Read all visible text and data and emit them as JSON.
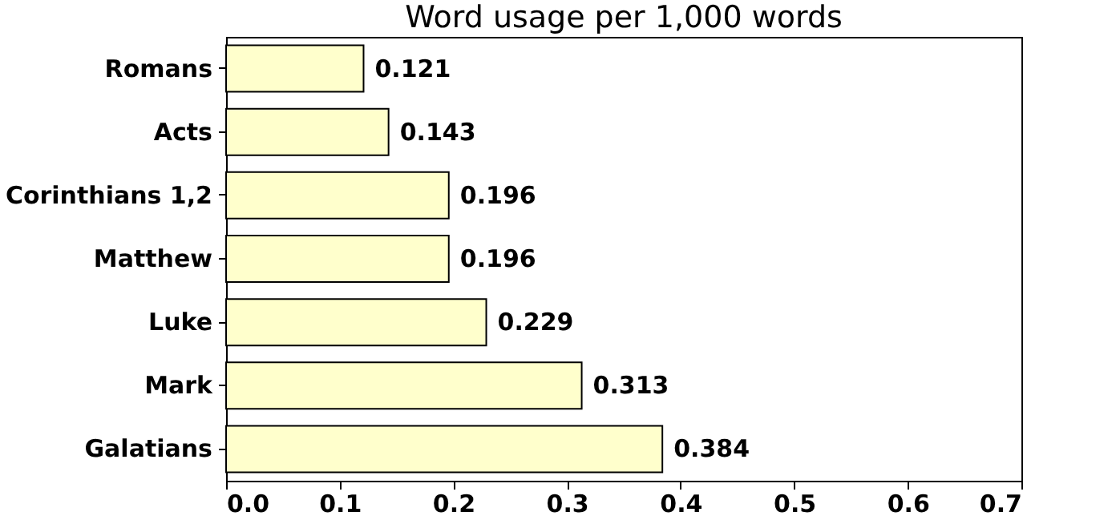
{
  "chart_data": {
    "type": "bar",
    "orientation": "horizontal",
    "title": "Word usage per 1,000 words",
    "categories": [
      "Romans",
      "Acts",
      "Corinthians 1,2",
      "Matthew",
      "Luke",
      "Mark",
      "Galatians"
    ],
    "values": [
      0.121,
      0.143,
      0.196,
      0.196,
      0.229,
      0.313,
      0.384
    ],
    "color": "#ffffcc",
    "data_labels": true,
    "grid": false,
    "xlim": [
      0,
      0.7
    ],
    "xticks": [
      {
        "value": 0,
        "label": "0.0"
      },
      {
        "value": 0.1,
        "label": "0.1"
      },
      {
        "value": 0.2,
        "label": "0.2"
      },
      {
        "value": 0.3,
        "label": "0.3"
      },
      {
        "value": 0.4,
        "label": "0.4"
      },
      {
        "value": 0.5,
        "label": "0.5"
      },
      {
        "value": 0.6,
        "label": "0.6"
      },
      {
        "value": 0.7,
        "label": "0.7"
      }
    ]
  }
}
